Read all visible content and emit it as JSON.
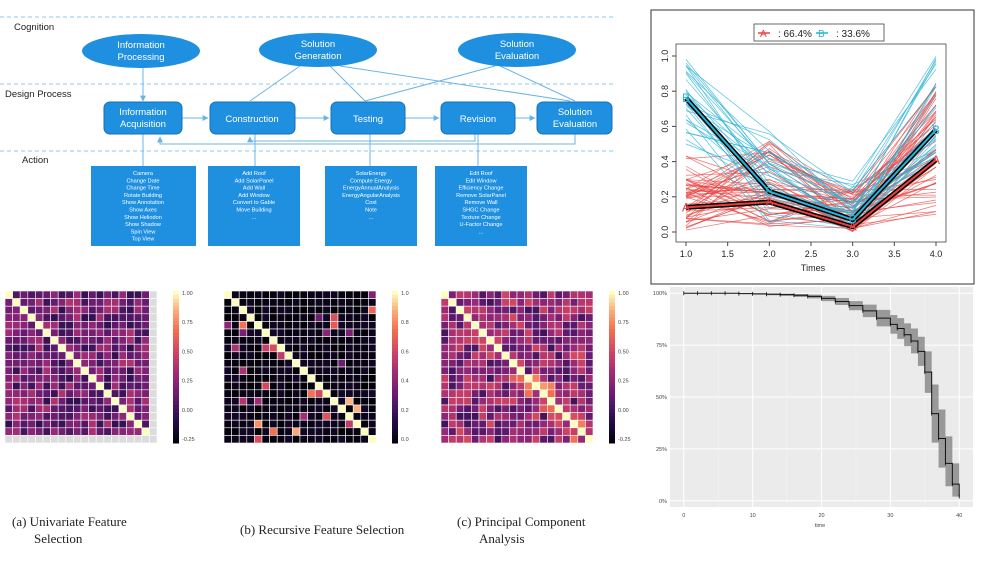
{
  "flow": {
    "layers": [
      "Cognition",
      "Design Process",
      "Action"
    ],
    "cognition_nodes": [
      {
        "label": "Information",
        "label2": "Processing"
      },
      {
        "label": "Solution",
        "label2": "Generation"
      },
      {
        "label": "Solution",
        "label2": "Evaluation"
      }
    ],
    "process_nodes": [
      {
        "label": "Information",
        "label2": "Acquisition"
      },
      {
        "label": "Construction",
        "label2": ""
      },
      {
        "label": "Testing",
        "label2": ""
      },
      {
        "label": "Revision",
        "label2": ""
      },
      {
        "label": "Solution",
        "label2": "Evaluation"
      }
    ],
    "action_boxes": [
      [
        "Camera",
        "Change Date",
        "Change Time",
        "Rotate Building",
        "Show Annotation",
        "Show Axes",
        "Show Heliodon",
        "Show Shadow",
        "Spin View",
        "Top View",
        "..."
      ],
      [
        "Add Roof",
        "Add SolarPanel",
        "Add Wall",
        "Add Window",
        "Convert to Gable",
        "Move Building",
        "..."
      ],
      [
        "SolarEnergy",
        "Compute Energy",
        "EnergyAnnualAnalysis",
        "EnergyAngularAnalysis",
        "Cost",
        "Note",
        "..."
      ],
      [
        "Edit Roof",
        "Edit Window",
        "Efficiency Change",
        "Remove SolarPanel",
        "Remove Wall",
        "SHGC Change",
        "Texture Change",
        "U-Factor Change",
        "..."
      ]
    ]
  },
  "colors": {
    "accent": "#1f8fe0",
    "cluster_a": "#e8403f",
    "cluster_b": "#29b3d6"
  },
  "captions": [
    {
      "line1": "(a)  Univariate Feature",
      "line2": "Selection"
    },
    {
      "line1": "(b)  Recursive Feature Selection",
      "line2": ""
    },
    {
      "line1": "(c)  Principal Component",
      "line2": "Analysis"
    }
  ],
  "chart_data": [
    {
      "type": "line",
      "legend": [
        {
          "symbol": "A",
          "text": ": 66.4%",
          "color": "#e8403f"
        },
        {
          "symbol": "B",
          "text": ": 33.6%",
          "color": "#29b3d6"
        }
      ],
      "legend_position": "top-center",
      "xlabel": "Times",
      "ylabel": "",
      "x_ticks": [
        "1.0",
        "1.5",
        "2.0",
        "2.5",
        "3.0",
        "3.5",
        "4.0"
      ],
      "y_ticks": [
        "0.0",
        "0.2",
        "0.4",
        "0.6",
        "0.8",
        "1.0"
      ],
      "xlim": [
        1,
        4
      ],
      "ylim": [
        0,
        1
      ],
      "x": [
        1,
        2,
        3,
        4
      ],
      "series": [
        {
          "name": "A",
          "values": [
            0.14,
            0.17,
            0.03,
            0.41
          ]
        },
        {
          "name": "B",
          "values": [
            0.76,
            0.23,
            0.07,
            0.58
          ]
        }
      ],
      "point_labels": [
        "A",
        "B",
        "A",
        "B"
      ]
    },
    {
      "type": "heatmap",
      "size": 20,
      "scale_ticks": [
        "1.00",
        "0.75",
        "0.50",
        "0.25",
        "0.00",
        "-0.25"
      ],
      "vmin": -0.35,
      "vmax": 1.0
    },
    {
      "type": "heatmap",
      "size": 20,
      "scale_ticks": [
        "1.0",
        "0.8",
        "0.6",
        "0.4",
        "0.2",
        "0.0"
      ],
      "vmin": 0.0,
      "vmax": 1.0
    },
    {
      "type": "heatmap",
      "size": 20,
      "scale_ticks": [
        "1.00",
        "0.75",
        "0.50",
        "0.25",
        "0.00",
        "-0.25"
      ],
      "vmin": -0.35,
      "vmax": 1.0
    },
    {
      "type": "line",
      "xlabel": "time",
      "ylabel": "",
      "x_ticks": [
        "0",
        "10",
        "20",
        "30",
        "40"
      ],
      "y_ticks": [
        "100%",
        "75%",
        "50%",
        "25%",
        "0%"
      ],
      "xlim": [
        -2,
        42
      ],
      "ylim": [
        -0.03,
        1.03
      ],
      "x": [
        0,
        2,
        4,
        6,
        8,
        10,
        12,
        14,
        16,
        18,
        20,
        22,
        24,
        26,
        28,
        30,
        31,
        32,
        33,
        34,
        35,
        36,
        37,
        38,
        39,
        40
      ],
      "series": [
        {
          "name": "survival",
          "values": [
            1.0,
            1.0,
            1.0,
            1.0,
            0.998,
            0.997,
            0.995,
            0.993,
            0.99,
            0.985,
            0.975,
            0.96,
            0.94,
            0.915,
            0.88,
            0.85,
            0.83,
            0.8,
            0.77,
            0.72,
            0.62,
            0.42,
            0.3,
            0.18,
            0.08,
            0.02
          ]
        },
        {
          "name": "upper",
          "values": [
            1.0,
            1.0,
            1.0,
            1.0,
            1.0,
            1.0,
            0.999,
            0.998,
            0.996,
            0.993,
            0.987,
            0.977,
            0.962,
            0.945,
            0.92,
            0.895,
            0.88,
            0.855,
            0.83,
            0.79,
            0.72,
            0.56,
            0.44,
            0.31,
            0.18,
            0.07
          ]
        },
        {
          "name": "lower",
          "values": [
            1.0,
            1.0,
            1.0,
            0.999,
            0.996,
            0.993,
            0.99,
            0.987,
            0.982,
            0.975,
            0.962,
            0.943,
            0.918,
            0.885,
            0.84,
            0.805,
            0.78,
            0.745,
            0.71,
            0.65,
            0.52,
            0.28,
            0.16,
            0.07,
            0.02,
            0.0
          ]
        }
      ]
    }
  ]
}
